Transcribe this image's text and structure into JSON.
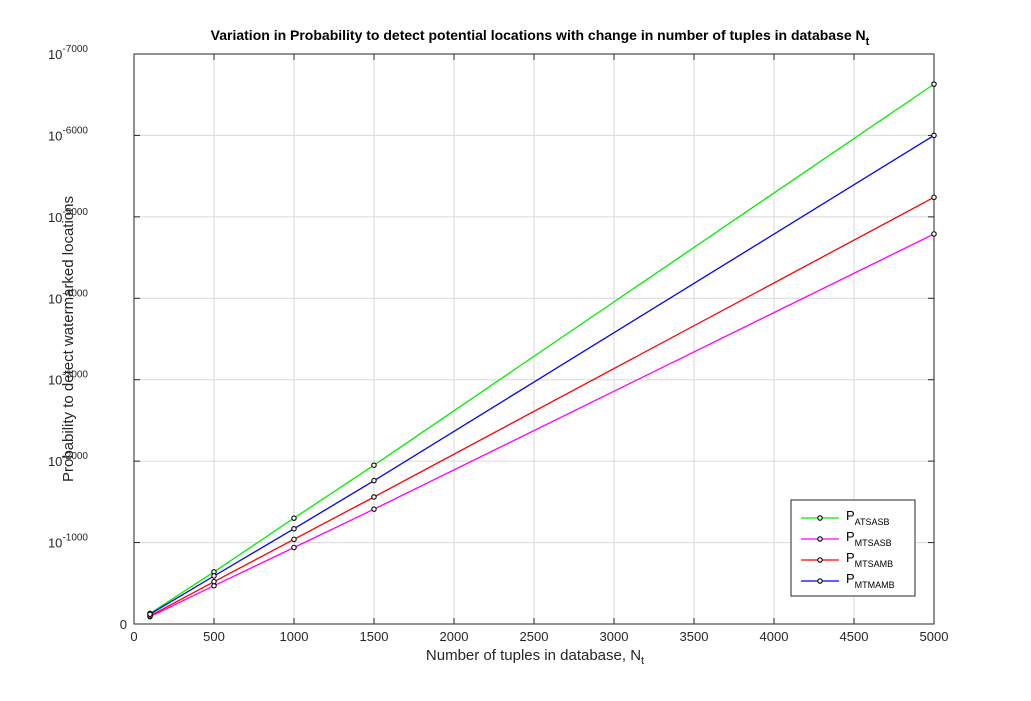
{
  "chart_data": {
    "type": "line",
    "title": "Variation in Probability to detect potential locations with change in number of tuples in database N",
    "title_subscript": "t",
    "xlabel": "Number of tuples in database, N",
    "xlabel_subscript": "t",
    "ylabel": "Probability to detect watermarked locations",
    "xlim": [
      0,
      5000
    ],
    "ylim_exponent": [
      0,
      -7000
    ],
    "y_scale": "log (powers of 10, axis shows exponent)",
    "x_ticks": [
      0,
      500,
      1000,
      1500,
      2000,
      2500,
      3000,
      3500,
      4000,
      4500,
      5000
    ],
    "y_ticks": [
      {
        "label": "0",
        "exponent": 0
      },
      {
        "label": "10",
        "sup": "-1000",
        "exponent": -1000
      },
      {
        "label": "10",
        "sup": "-2000",
        "exponent": -2000
      },
      {
        "label": "10",
        "sup": "-3000",
        "exponent": -3000
      },
      {
        "label": "10",
        "sup": "-4000",
        "exponent": -4000
      },
      {
        "label": "10",
        "sup": "-5000",
        "exponent": -5000
      },
      {
        "label": "10",
        "sup": "-6000",
        "exponent": -6000
      },
      {
        "label": "10",
        "sup": "-7000",
        "exponent": -7000
      }
    ],
    "grid": true,
    "legend_position": "bottom-right",
    "x": [
      100,
      500,
      1000,
      1500,
      5000
    ],
    "series": [
      {
        "name": "P",
        "sub": "ATSASB",
        "color": "#00ee00",
        "y_exponent": [
          -130,
          -640,
          -1300,
          -1950,
          -6630
        ]
      },
      {
        "name": "P",
        "sub": "MTSASB",
        "color": "#ff00ff",
        "y_exponent": [
          -90,
          -470,
          -940,
          -1410,
          -4790
        ]
      },
      {
        "name": "P",
        "sub": "MTSAMB",
        "color": "#ff0000",
        "y_exponent": [
          -100,
          -520,
          -1040,
          -1560,
          -5240
        ]
      },
      {
        "name": "P",
        "sub": "MTMAMB",
        "color": "#0000ff",
        "y_exponent": [
          -120,
          -590,
          -1170,
          -1760,
          -6000
        ]
      }
    ]
  }
}
